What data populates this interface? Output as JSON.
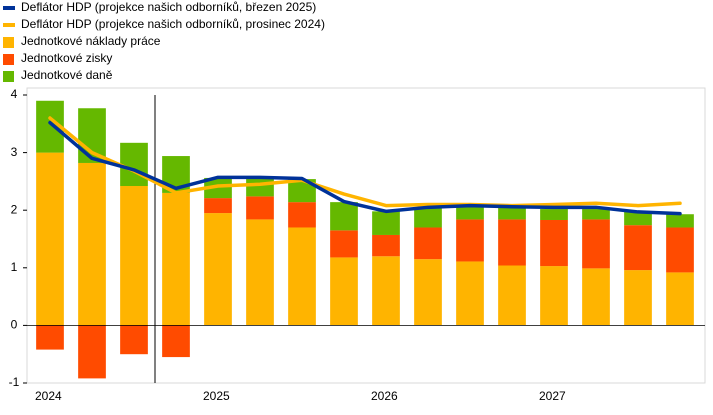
{
  "chart_data": {
    "type": "bar",
    "categories": [
      "2024",
      null,
      null,
      null,
      "2025",
      null,
      null,
      null,
      "2026",
      null,
      null,
      null,
      "2027",
      null,
      null,
      null
    ],
    "series": [
      {
        "name": "Deflátor HDP (projekce našich odborníků, březen 2025)",
        "type": "line",
        "color": "#003299",
        "values": [
          3.52,
          2.9,
          2.7,
          2.38,
          2.57,
          2.57,
          2.55,
          2.15,
          1.98,
          2.05,
          2.08,
          2.06,
          2.05,
          2.05,
          1.97,
          1.94
        ]
      },
      {
        "name": "Deflátor HDP (projekce našich odborníků, prosinec 2024)",
        "type": "line",
        "color": "#ffb400",
        "values": [
          3.6,
          3.0,
          2.68,
          2.3,
          2.42,
          2.45,
          2.52,
          2.28,
          2.08,
          2.1,
          2.1,
          2.08,
          2.1,
          2.12,
          2.08,
          2.12
        ]
      },
      {
        "name": "Jednotkové náklady práce",
        "type": "bar",
        "color": "#ffb400",
        "values": [
          3.0,
          2.82,
          2.42,
          2.3,
          1.95,
          1.84,
          1.7,
          1.18,
          1.2,
          1.15,
          1.11,
          1.04,
          1.03,
          0.99,
          0.96,
          0.92
        ]
      },
      {
        "name": "Jednotkové zisky",
        "type": "bar",
        "color": "#ff4b00",
        "values": [
          -0.42,
          -0.92,
          -0.5,
          -0.55,
          0.26,
          0.4,
          0.44,
          0.47,
          0.37,
          0.55,
          0.73,
          0.8,
          0.8,
          0.85,
          0.78,
          0.78
        ]
      },
      {
        "name": "Jednotkové daně",
        "type": "bar",
        "color": "#65b800",
        "values": [
          0.9,
          0.95,
          0.75,
          0.64,
          0.35,
          0.32,
          0.4,
          0.49,
          0.41,
          0.35,
          0.25,
          0.21,
          0.19,
          0.18,
          0.23,
          0.23
        ]
      }
    ],
    "ylim": [
      -1,
      4
    ],
    "yticks": [
      -1,
      0,
      1,
      2,
      3,
      4
    ],
    "grid": false
  }
}
